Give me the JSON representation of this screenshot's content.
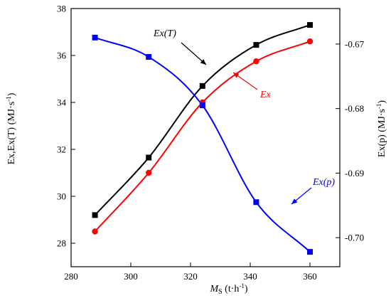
{
  "chart_data": {
    "type": "line",
    "x": [
      288,
      306,
      324,
      342,
      360
    ],
    "xlabel": "M",
    "xlabel_sub": "S",
    "xlabel_unit": " (t·h",
    "xlabel_unit_sup": "-1",
    "xlabel_unit_close": ")",
    "xlim": [
      280,
      370
    ],
    "xticks": [
      280,
      300,
      320,
      340,
      360
    ],
    "ylabel_left": "Ex,Ex(T) (MJ·s",
    "ylabel_left_sup": "-1",
    "ylabel_left_close": ")",
    "ylim_left": [
      27,
      38
    ],
    "yticks_left": [
      28,
      30,
      32,
      34,
      36,
      38
    ],
    "ylabel_right": "Ex(p) (MJ·s",
    "ylabel_right_sup": "-1",
    "ylabel_right_close": ")",
    "ylim_right": [
      -0.7045,
      -0.6645
    ],
    "yticks_right": [
      -0.7,
      -0.69,
      -0.68,
      -0.67
    ],
    "ytick_labels_right": [
      "-0.70",
      "-0.69",
      "-0.68",
      "-0.67"
    ],
    "grid": false,
    "series": [
      {
        "name": "Ex(T)",
        "axis": "left",
        "color": "#000000",
        "marker": "square",
        "values": [
          29.2,
          31.65,
          34.7,
          36.45,
          37.3
        ]
      },
      {
        "name": "Ex",
        "axis": "left",
        "color": "#ff0000",
        "marker": "circle",
        "values": [
          28.5,
          31.0,
          34.0,
          35.75,
          36.6
        ]
      },
      {
        "name": "Ex(p)",
        "axis": "right",
        "color": "#0000ff",
        "marker": "square",
        "values": [
          -0.669,
          -0.672,
          -0.6795,
          -0.6945,
          -0.7022
        ]
      }
    ],
    "annotations": [
      {
        "text": "Ex(T)",
        "series": 0,
        "color": "#000000"
      },
      {
        "text": "Ex",
        "series": 1,
        "color": "#ff0000"
      },
      {
        "text": "Ex(p)",
        "series": 2,
        "color": "#0000ff"
      }
    ]
  }
}
